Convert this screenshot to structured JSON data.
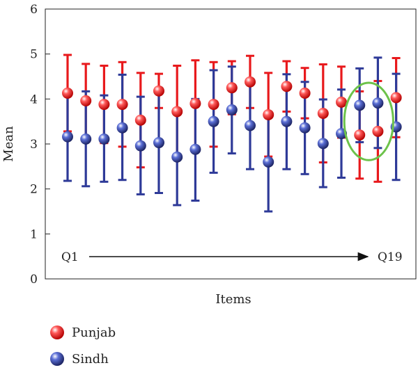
{
  "chart_data": {
    "type": "scatter",
    "xlabel": "Items",
    "ylabel": "Mean",
    "ylim": [
      0,
      6
    ],
    "yticks": [
      "0",
      "1",
      "2",
      "3",
      "4",
      "5",
      "6"
    ],
    "grid": false,
    "legend_position": "bottom-left",
    "x": [
      1,
      2,
      3,
      4,
      5,
      6,
      7,
      8,
      9,
      10,
      11,
      12,
      13,
      14,
      15,
      16,
      17,
      18,
      19
    ],
    "series": [
      {
        "name": "Punjab",
        "color": "#e8191c",
        "mean": [
          4.13,
          3.96,
          3.88,
          3.88,
          3.53,
          4.18,
          3.72,
          3.9,
          3.88,
          4.25,
          4.38,
          3.65,
          4.28,
          4.13,
          3.68,
          3.93,
          3.2,
          3.28,
          4.03
        ],
        "upper": [
          4.98,
          4.78,
          4.74,
          4.82,
          4.58,
          4.56,
          4.74,
          4.86,
          4.82,
          4.84,
          4.96,
          4.58,
          4.84,
          4.69,
          4.77,
          4.72,
          4.17,
          4.4,
          4.91
        ],
        "lower": [
          3.28,
          3.14,
          3.02,
          2.94,
          2.48,
          3.8,
          2.7,
          2.94,
          2.94,
          3.66,
          3.8,
          2.72,
          3.72,
          3.57,
          2.59,
          3.14,
          2.23,
          2.16,
          3.15
        ]
      },
      {
        "name": "Sindh",
        "color": "#2e3a98",
        "mean": [
          3.16,
          3.11,
          3.11,
          3.36,
          2.96,
          3.03,
          2.71,
          2.88,
          3.5,
          3.76,
          3.41,
          2.6,
          3.5,
          3.36,
          3.01,
          3.23,
          3.86,
          3.91,
          3.38
        ],
        "upper": [
          4.16,
          4.17,
          4.08,
          4.54,
          4.05,
          4.16,
          3.78,
          4.0,
          4.64,
          4.72,
          4.36,
          3.68,
          4.55,
          4.38,
          3.99,
          4.21,
          4.68,
          4.92,
          4.56
        ],
        "lower": [
          2.18,
          2.06,
          2.16,
          2.2,
          1.88,
          1.91,
          1.64,
          1.74,
          2.36,
          2.79,
          2.44,
          1.5,
          2.44,
          2.33,
          2.04,
          2.25,
          3.04,
          2.91,
          2.2
        ]
      }
    ],
    "annotations": {
      "arrow_start_label": "Q1",
      "arrow_end_label": "Q19",
      "highlight_items": [
        17,
        18
      ],
      "highlight_color": "#6cc24a"
    }
  }
}
